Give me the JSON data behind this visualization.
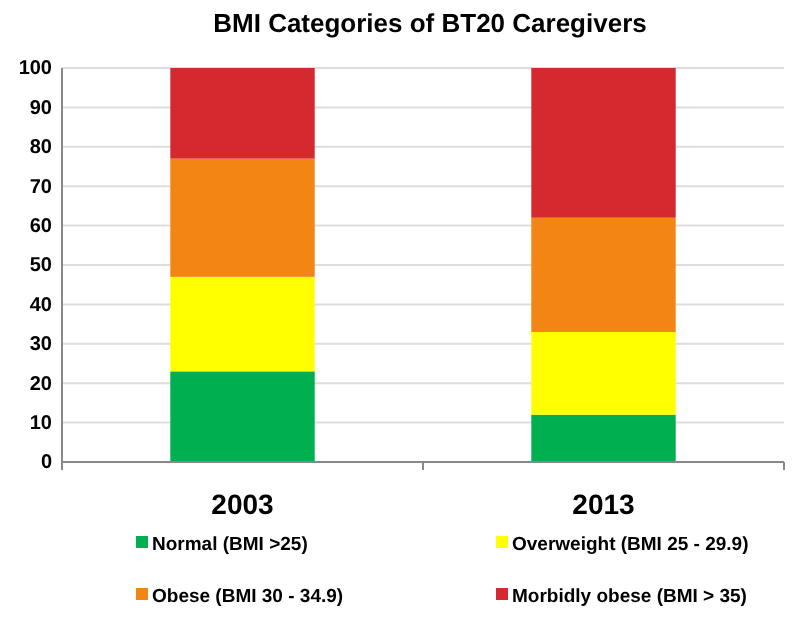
{
  "chart_data": {
    "type": "bar",
    "title": "BMI Categories of BT20 Caregivers",
    "categories": [
      "2003",
      "2013"
    ],
    "stacked": true,
    "series": [
      {
        "name": "Normal (BMI >25)",
        "color": "#00b050",
        "values": [
          23,
          12
        ]
      },
      {
        "name": "Overweight (BMI 25 - 29.9)",
        "color": "#ffff00",
        "values": [
          24,
          21
        ]
      },
      {
        "name": "Obese (BMI 30 - 34.9)",
        "color": "#f28513",
        "values": [
          30,
          29
        ]
      },
      {
        "name": "Morbidly obese (BMI > 35)",
        "color": "#d42a2f",
        "values": [
          23,
          38
        ]
      }
    ],
    "ylim": [
      0,
      100
    ],
    "yticks": [
      0,
      10,
      20,
      30,
      40,
      50,
      60,
      70,
      80,
      90,
      100
    ],
    "grid": "y",
    "legend": "bottom"
  }
}
